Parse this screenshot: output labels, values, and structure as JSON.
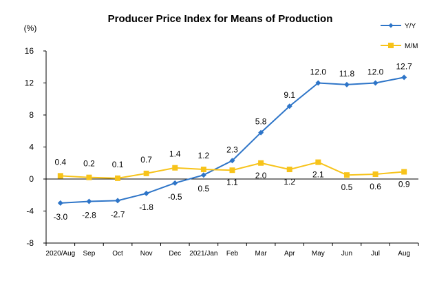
{
  "chart_data": {
    "type": "line",
    "title": "Producer Price Index for Means of Production",
    "ylabel": "(%)",
    "xlabel": "",
    "ylim": [
      -8,
      16
    ],
    "yticks": [
      -8,
      -4,
      0,
      4,
      8,
      12,
      16
    ],
    "grid": false,
    "legend_position": "top-right",
    "categories": [
      "2020/Aug",
      "Sep",
      "Oct",
      "Nov",
      "Dec",
      "2021/Jan",
      "Feb",
      "Mar",
      "Apr",
      "May",
      "Jun",
      "Jul",
      "Aug"
    ],
    "series": [
      {
        "name": "Y/Y",
        "color": "#2e75c8",
        "marker": "diamond",
        "values": [
          -3.0,
          -2.8,
          -2.7,
          -1.8,
          -0.5,
          0.5,
          2.3,
          5.8,
          9.1,
          12.0,
          11.8,
          12.0,
          12.7
        ],
        "labels": [
          "-3.0",
          "-2.8",
          "-2.7",
          "-1.8",
          "-0.5",
          "0.5",
          "2.3",
          "5.8",
          "9.1",
          "12.0",
          "11.8",
          "12.0",
          "12.7"
        ]
      },
      {
        "name": "M/M",
        "color": "#f7c31a",
        "marker": "square",
        "values": [
          0.4,
          0.2,
          0.1,
          0.7,
          1.4,
          1.2,
          1.1,
          2.0,
          1.2,
          2.1,
          0.5,
          0.6,
          0.9
        ],
        "labels": [
          "0.4",
          "0.2",
          "0.1",
          "0.7",
          "1.4",
          "1.2",
          "1.1",
          "2.0",
          "1.2",
          "2.1",
          "0.5",
          "0.6",
          "0.9"
        ]
      }
    ]
  }
}
